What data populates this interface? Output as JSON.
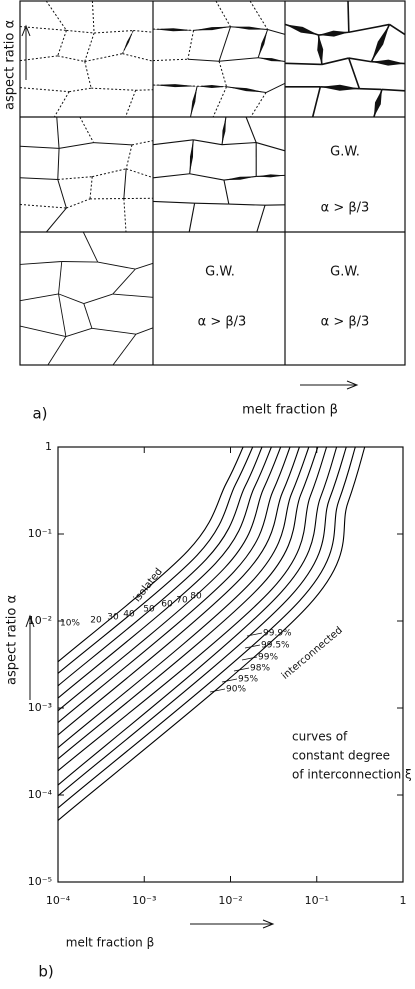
{
  "panel_a": {
    "y_label": "aspect ratio α",
    "x_label": "melt fraction β",
    "tag": "a)",
    "cells": [
      {
        "text": "G.W.",
        "condition": "α > β/3"
      },
      {
        "text": "G.W.",
        "condition": "α > β/3"
      },
      {
        "text": "G.W.",
        "condition": "α > β/3"
      }
    ]
  },
  "chart_data": {
    "type": "line",
    "xscale": "log",
    "yscale": "log",
    "color": "#000000",
    "xlabel": "melt fraction β",
    "ylabel": "aspect ratio α",
    "tag": "b)",
    "xlim": [
      0.0001,
      1
    ],
    "ylim": [
      1e-05,
      1
    ],
    "xticks": [
      {
        "value": 0.0001,
        "label": "10⁻⁴"
      },
      {
        "value": 0.001,
        "label": "10⁻³"
      },
      {
        "value": 0.01,
        "label": "10⁻²"
      },
      {
        "value": 0.1,
        "label": "10⁻¹"
      },
      1
    ],
    "yticks": [
      1,
      {
        "value": 0.1,
        "label": "10⁻¹"
      },
      {
        "value": 0.01,
        "label": "10⁻²"
      },
      {
        "value": 0.001,
        "label": "10⁻³"
      },
      {
        "value": 0.0001,
        "label": "10⁻⁴"
      },
      {
        "value": 1e-05,
        "label": "10⁻⁵"
      }
    ],
    "annotations": [
      "isolated",
      "interconnected",
      "curves of",
      "constant degree",
      "of interconnection ξ"
    ],
    "series": [
      {
        "name": "10%",
        "x": [
          0.0001,
          0.0032,
          0.0089,
          0.014
        ],
        "values": [
          0.0034,
          0.064,
          0.38,
          1
        ]
      },
      {
        "name": "20",
        "x": [
          0.0001,
          0.0041,
          0.0114,
          0.0181
        ],
        "values": [
          0.0025,
          0.057,
          0.37,
          1
        ]
      },
      {
        "name": "30",
        "x": [
          0.0001,
          0.0052,
          0.0147,
          0.0232
        ],
        "values": [
          0.0018,
          0.051,
          0.35,
          1
        ]
      },
      {
        "name": "40",
        "x": [
          0.0001,
          0.0067,
          0.0188,
          0.0298
        ],
        "values": [
          0.0013,
          0.046,
          0.34,
          1
        ]
      },
      {
        "name": "50",
        "x": [
          0.0001,
          0.0086,
          0.0241,
          0.0382
        ],
        "values": [
          0.00093,
          0.041,
          0.33,
          1
        ]
      },
      {
        "name": "60",
        "x": [
          0.0001,
          0.011,
          0.031,
          0.049
        ],
        "values": [
          0.00068,
          0.037,
          0.31,
          1
        ]
      },
      {
        "name": "70",
        "x": [
          0.0001,
          0.014,
          0.04,
          0.063
        ],
        "values": [
          0.00049,
          0.033,
          0.3,
          1
        ]
      },
      {
        "name": "80",
        "x": [
          0.0001,
          0.018,
          0.051,
          0.081
        ],
        "values": [
          0.00035,
          0.029,
          0.29,
          1
        ]
      },
      {
        "name": "90%",
        "x": [
          0.0001,
          0.023,
          0.065,
          0.103
        ],
        "values": [
          0.00026,
          0.026,
          0.28,
          1
        ]
      },
      {
        "name": "95%",
        "x": [
          0.0001,
          0.03,
          0.084,
          0.13
        ],
        "values": [
          0.00019,
          0.023,
          0.27,
          1
        ]
      },
      {
        "name": "98%",
        "x": [
          0.0001,
          0.038,
          0.11,
          0.17
        ],
        "values": [
          0.00013,
          0.021,
          0.26,
          1
        ]
      },
      {
        "name": "99%",
        "x": [
          0.0001,
          0.049,
          0.14,
          0.22
        ],
        "values": [
          9.8e-05,
          0.019,
          0.25,
          1
        ]
      },
      {
        "name": "99.5%",
        "x": [
          0.0001,
          0.063,
          0.18,
          0.28
        ],
        "values": [
          7.1e-05,
          0.017,
          0.24,
          1
        ]
      },
      {
        "name": "99.9%",
        "x": [
          0.0001,
          0.08,
          0.23,
          0.36
        ],
        "values": [
          5.1e-05,
          0.015,
          0.23,
          1
        ]
      }
    ]
  }
}
